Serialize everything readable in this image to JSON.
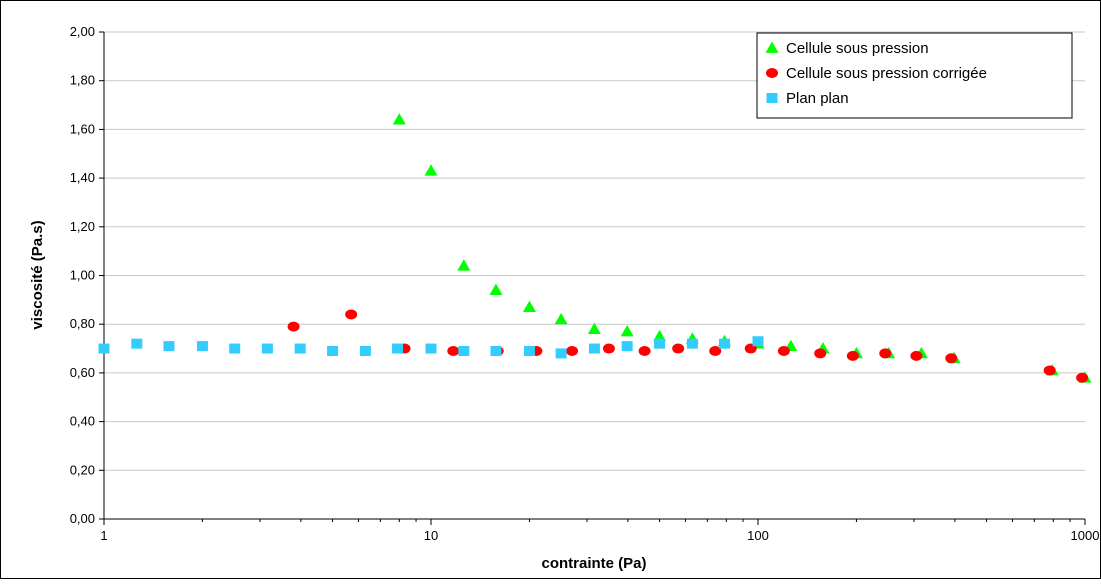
{
  "chart_data": {
    "type": "scatter",
    "xlabel": "contrainte (Pa)",
    "ylabel": "viscosité (Pa.s)",
    "x_scale": "log",
    "xlim": [
      1,
      1000
    ],
    "ylim": [
      0,
      2
    ],
    "x_ticks": [
      1,
      10,
      100,
      1000
    ],
    "x_tick_labels": [
      "1",
      "10",
      "100",
      "1000"
    ],
    "y_ticks": [
      0,
      0.2,
      0.4,
      0.6,
      0.8,
      1.0,
      1.2,
      1.4,
      1.6,
      1.8,
      2.0
    ],
    "y_tick_labels": [
      "0,00",
      "0,20",
      "0,40",
      "0,60",
      "0,80",
      "1,00",
      "1,20",
      "1,40",
      "1,60",
      "1,80",
      "2,00"
    ],
    "grid": "horizontal",
    "legend_position": "top-right",
    "series": [
      {
        "name": "Cellule sous pression",
        "marker": "triangle",
        "color": "#00ff00",
        "points": [
          [
            8,
            1.64
          ],
          [
            10,
            1.43
          ],
          [
            12.6,
            1.04
          ],
          [
            15.8,
            0.94
          ],
          [
            20,
            0.87
          ],
          [
            25,
            0.82
          ],
          [
            31.6,
            0.78
          ],
          [
            39.8,
            0.77
          ],
          [
            50,
            0.75
          ],
          [
            63,
            0.74
          ],
          [
            79,
            0.73
          ],
          [
            100,
            0.72
          ],
          [
            126,
            0.71
          ],
          [
            158,
            0.7
          ],
          [
            200,
            0.68
          ],
          [
            251,
            0.68
          ],
          [
            316,
            0.68
          ],
          [
            398,
            0.66
          ],
          [
            794,
            0.61
          ],
          [
            1000,
            0.58
          ]
        ]
      },
      {
        "name": "Cellule sous pression corrigée",
        "marker": "circle",
        "color": "#ff0000",
        "points": [
          [
            3.8,
            0.79
          ],
          [
            5.7,
            0.84
          ],
          [
            8.3,
            0.7
          ],
          [
            11.7,
            0.69
          ],
          [
            16,
            0.69
          ],
          [
            21,
            0.69
          ],
          [
            27,
            0.69
          ],
          [
            35,
            0.7
          ],
          [
            45,
            0.69
          ],
          [
            57,
            0.7
          ],
          [
            74,
            0.69
          ],
          [
            95,
            0.7
          ],
          [
            120,
            0.69
          ],
          [
            155,
            0.68
          ],
          [
            195,
            0.67
          ],
          [
            245,
            0.68
          ],
          [
            305,
            0.67
          ],
          [
            390,
            0.66
          ],
          [
            780,
            0.61
          ],
          [
            980,
            0.58
          ]
        ]
      },
      {
        "name": "Plan plan",
        "marker": "square",
        "color": "#33ccff",
        "points": [
          [
            1,
            0.7
          ],
          [
            1.26,
            0.72
          ],
          [
            1.58,
            0.71
          ],
          [
            2,
            0.71
          ],
          [
            2.51,
            0.7
          ],
          [
            3.16,
            0.7
          ],
          [
            3.98,
            0.7
          ],
          [
            5,
            0.69
          ],
          [
            6.3,
            0.69
          ],
          [
            7.9,
            0.7
          ],
          [
            10,
            0.7
          ],
          [
            12.6,
            0.69
          ],
          [
            15.8,
            0.69
          ],
          [
            20,
            0.69
          ],
          [
            25,
            0.68
          ],
          [
            31.6,
            0.7
          ],
          [
            39.8,
            0.71
          ],
          [
            50,
            0.72
          ],
          [
            63,
            0.72
          ],
          [
            79,
            0.72
          ],
          [
            100,
            0.73
          ]
        ]
      }
    ]
  }
}
